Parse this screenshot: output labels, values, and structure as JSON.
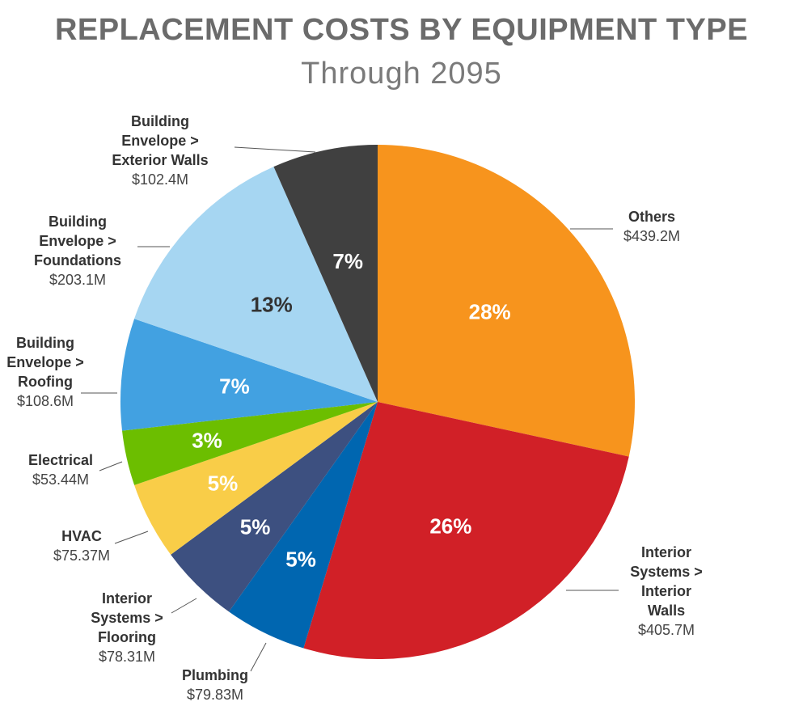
{
  "chart_data": {
    "type": "pie",
    "title": "REPLACEMENT COSTS BY EQUIPMENT TYPE",
    "subtitle": "Through 2095",
    "start_angle": "12 o'clock",
    "direction": "clockwise",
    "slices": [
      {
        "name": "Others",
        "name_lines": [
          "Others"
        ],
        "value": 439.2,
        "value_label": "$439.2M",
        "percent_label": "28%",
        "color": "#F7941D",
        "text_color": "#ffffff"
      },
      {
        "name": "Interior Systems > Interior Walls",
        "name_lines": [
          "Interior",
          "Systems >",
          "Interior",
          "Walls"
        ],
        "value": 405.7,
        "value_label": "$405.7M",
        "percent_label": "26%",
        "color": "#D12027",
        "text_color": "#ffffff"
      },
      {
        "name": "Plumbing",
        "name_lines": [
          "Plumbing"
        ],
        "value": 79.83,
        "value_label": "$79.83M",
        "percent_label": "5%",
        "color": "#0066B0",
        "text_color": "#ffffff"
      },
      {
        "name": "Interior Systems > Flooring",
        "name_lines": [
          "Interior",
          "Systems >",
          "Flooring"
        ],
        "value": 78.31,
        "value_label": "$78.31M",
        "percent_label": "5%",
        "color": "#3D5080",
        "text_color": "#ffffff"
      },
      {
        "name": "HVAC",
        "name_lines": [
          "HVAC"
        ],
        "value": 75.37,
        "value_label": "$75.37M",
        "percent_label": "5%",
        "color": "#F9CD48",
        "text_color": "#ffffff"
      },
      {
        "name": "Electrical",
        "name_lines": [
          "Electrical"
        ],
        "value": 53.44,
        "value_label": "$53.44M",
        "percent_label": "3%",
        "color": "#6CBE00",
        "text_color": "#ffffff"
      },
      {
        "name": "Building Envelope > Roofing",
        "name_lines": [
          "Building",
          "Envelope >",
          "Roofing"
        ],
        "value": 108.6,
        "value_label": "$108.6M",
        "percent_label": "7%",
        "color": "#42A1E1",
        "text_color": "#ffffff"
      },
      {
        "name": "Building Envelope > Foundations",
        "name_lines": [
          "Building",
          "Envelope >",
          "Foundations"
        ],
        "value": 203.1,
        "value_label": "$203.1M",
        "percent_label": "13%",
        "color": "#A6D6F2",
        "text_color": "#333333"
      },
      {
        "name": "Building Envelope > Exterior Walls",
        "name_lines": [
          "Building",
          "Envelope >",
          "Exterior Walls"
        ],
        "value": 102.4,
        "value_label": "$102.4M",
        "percent_label": "7%",
        "color": "#404040",
        "text_color": "#ffffff"
      }
    ]
  }
}
